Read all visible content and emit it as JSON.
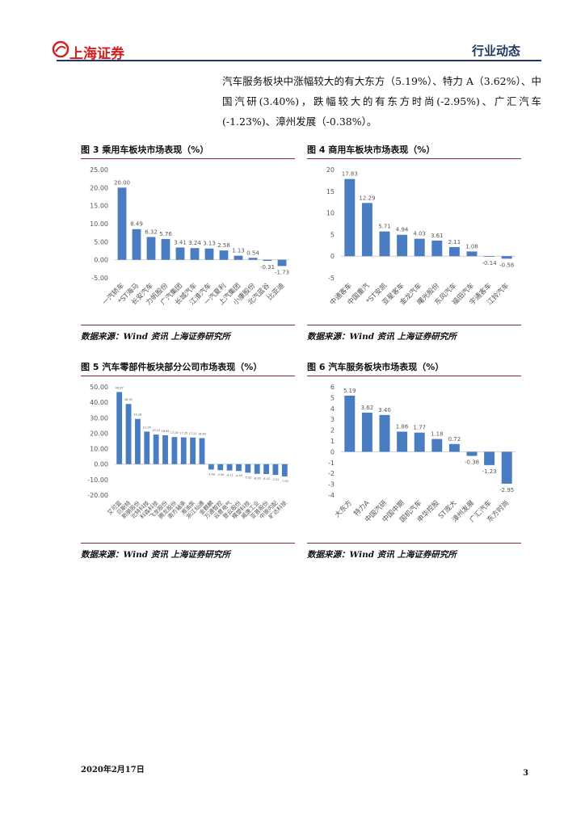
{
  "header": {
    "logo": "上海证券",
    "section": "行业动态"
  },
  "paragraph": "汽车服务板块中涨幅较大的有大东方（5.19%）、特力 A（3.62%）、中国汽研(3.40%)，跌幅较大的有东方时尚(-2.95%)、广汇汽车(-1.23%)、漳州发展（-0.38%）。",
  "chart_data": [
    {
      "type": "bar",
      "title": "图 3 乘用车板块市场表现（%）",
      "source": "数据来源：Wind 资讯 上海证券研究所",
      "color": "#4a7cc1",
      "categories": [
        "一汽轿车",
        "*ST海马",
        "长安汽车",
        "力帆股份",
        "广汽集团",
        "长城汽车",
        "江淮汽车",
        "一汽夏利",
        "上汽集团",
        "小康股份",
        "北汽蓝谷",
        "比亚迪"
      ],
      "values": [
        20.0,
        8.49,
        6.32,
        5.76,
        3.41,
        3.24,
        3.13,
        2.58,
        1.13,
        0.54,
        -0.31,
        -1.73
      ],
      "value_labels": [
        "20.00",
        "8.49",
        "6.32",
        "5.76",
        "3.41",
        "3.24",
        "3.13",
        "2.58",
        "1.13",
        "0.54",
        "-0.31",
        "-1.73"
      ],
      "ylim": [
        -5,
        25
      ],
      "yticks": [
        {
          "value": -5,
          "label": "-5.00"
        },
        {
          "value": 0,
          "label": "0.00"
        },
        {
          "value": 5,
          "label": "5.00"
        },
        {
          "value": 10,
          "label": "10.00"
        },
        {
          "value": 15,
          "label": "15.00"
        },
        {
          "value": 20,
          "label": "20.00"
        },
        {
          "value": 25,
          "label": "25.00"
        }
      ]
    },
    {
      "type": "bar",
      "title": "图 4 商用车板块市场表现（%）",
      "source": "数据来源：Wind 资讯 上海证券研究所",
      "color": "#4a7cc1",
      "categories": [
        "中通客车",
        "中国重汽",
        "*ST安凯",
        "亚星客车",
        "金龙汽车",
        "曙光股份",
        "东风汽车",
        "福田汽车",
        "宇通客车",
        "江铃汽车"
      ],
      "values": [
        17.83,
        12.29,
        5.71,
        4.94,
        4.03,
        3.61,
        2.11,
        1.08,
        -0.14,
        -0.58
      ],
      "ylim": [
        -5,
        20
      ],
      "yticks": [
        -5,
        0,
        5,
        10,
        15,
        20
      ]
    },
    {
      "type": "bar",
      "title": "图 5 汽车零部件板块部分公司市场表现（%）",
      "source": "数据来源：Wind 资讯 上海证券研究所",
      "color": "#4a7cc1",
      "categories": [
        "艾可蓝",
        "贝斯特",
        "新朋股份",
        "北特科技",
        "科森科技",
        "飞龙股份",
        "腾龙股份",
        "南方轴承",
        "湘油泵",
        "浙江仙通",
        "金麒麟",
        "万通智控",
        "云意电气",
        "登云股份",
        "模塑科技",
        "威唐工业",
        "亚普股份",
        "中原内配",
        "旷达科技"
      ],
      "values": [
        46.67,
        38.91,
        29.26,
        21.05,
        19.12,
        18.69,
        17.53,
        17.35,
        17.21,
        16.84,
        -3.48,
        -3.9,
        -4.11,
        -4.45,
        -5.52,
        -6.26,
        -6.42,
        -7.02,
        -7.93
      ],
      "value_labels": [
        "46.67",
        "38.91",
        "29.26",
        "21.05",
        "19.12",
        "18.69",
        "17.53",
        "17.35",
        "17.21",
        "16.84",
        "-3.48",
        "-3.90",
        "-4.11",
        "-4.45",
        "-5.52",
        "-6.26",
        "-6.42",
        "-7.02",
        "-7.93"
      ],
      "ylim": [
        -20,
        50
      ],
      "yticks": [
        {
          "value": -20,
          "label": "-20.00"
        },
        {
          "value": -10,
          "label": "-10.00"
        },
        {
          "value": 0,
          "label": "0.00"
        },
        {
          "value": 10,
          "label": "10.00"
        },
        {
          "value": 20,
          "label": "20.00"
        },
        {
          "value": 30,
          "label": "30.00"
        },
        {
          "value": 40,
          "label": "40.00"
        },
        {
          "value": 50,
          "label": "50.00"
        }
      ]
    },
    {
      "type": "bar",
      "title": "图 6 汽车服务板块市场表现（%）",
      "source": "数据来源：Wind 资讯 上海证券研究所",
      "color": "#4a7cc1",
      "categories": [
        "大东方",
        "特力A",
        "中国汽研",
        "中国中期",
        "国机汽车",
        "申华控股",
        "ST庞大",
        "漳州发展",
        "广汇汽车",
        "东方时尚"
      ],
      "values": [
        5.19,
        3.62,
        3.4,
        1.86,
        1.77,
        1.18,
        0.72,
        -0.38,
        -1.23,
        -2.95
      ],
      "value_labels": [
        "5.19",
        "3.62",
        "3.40",
        "1.86",
        "1.77",
        "1.18",
        "0.72",
        "-0.38",
        "-1.23",
        "-2.95"
      ],
      "ylim": [
        -4,
        6
      ],
      "yticks": [
        -4,
        -3,
        -2,
        -1,
        0,
        1,
        2,
        3,
        4,
        5,
        6
      ]
    }
  ],
  "footer": {
    "date": "2020年2月17日",
    "page": "3"
  }
}
